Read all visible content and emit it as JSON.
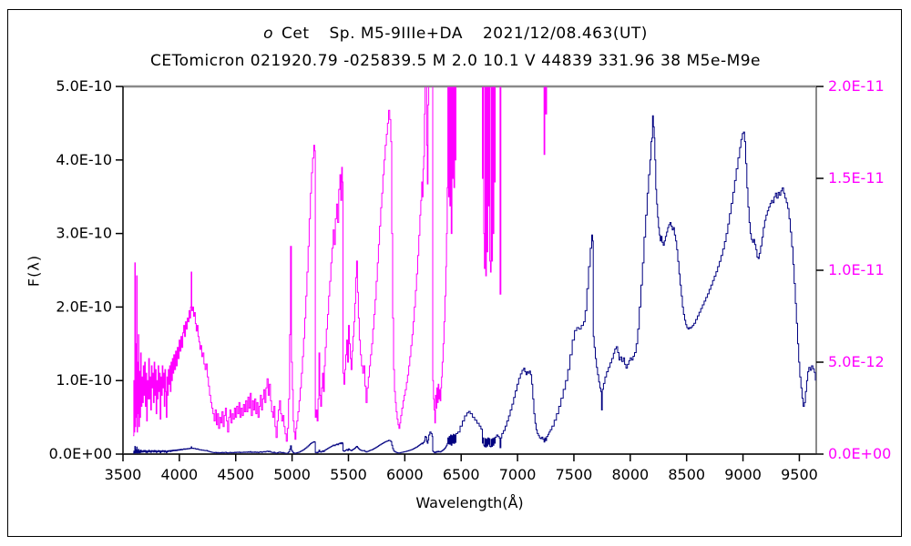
{
  "title": {
    "star_letter": "o",
    "star_name": "Cet",
    "spectral": "Sp. M5-9IIIe+DA",
    "date": "2021/12/08.463(UT)",
    "line2": "CETomicron 021920.79 -025839.5 M 2.0 10.1 V 44839 331.96 38 M5e-M9e"
  },
  "colors": {
    "navy": "#000080",
    "magenta": "#FF00FF",
    "frame_gray": "#8a8a8a",
    "axis_black": "#000000",
    "bottom_axis": "#333333"
  },
  "chart_data": {
    "type": "line",
    "title": "o Cet Sp. M5-9IIIe+DA 2021/12/08.463(UT)",
    "subtitle": "CETomicron 021920.79 -025839.5 M 2.0 10.1 V 44839 331.96 38 M5e-M9e",
    "xlabel": "Wavelength(Å)",
    "ylabel": "F(λ)",
    "x_range": [
      3500,
      9650
    ],
    "x_ticks": [
      3500,
      4000,
      4500,
      5000,
      5500,
      6000,
      6500,
      7000,
      7500,
      8000,
      8500,
      9000,
      9500
    ],
    "left_axis": {
      "range_label": [
        "0.0E+00",
        "5.0E-10"
      ],
      "ticks": [
        {
          "label": "5.0E-10",
          "value_1e12": 500
        },
        {
          "label": "4.0E-10",
          "value_1e12": 400
        },
        {
          "label": "3.0E-10",
          "value_1e12": 300
        },
        {
          "label": "2.0E-10",
          "value_1e12": 200
        },
        {
          "label": "1.0E-10",
          "value_1e12": 100
        },
        {
          "label": "0.0E+00",
          "value_1e12": 0
        }
      ]
    },
    "right_axis": {
      "range_label": [
        "0.0E+00",
        "2.0E-11"
      ],
      "ticks": [
        {
          "label": "2.0E-11",
          "value_1e12": 20
        },
        {
          "label": "1.5E-11",
          "value_1e12": 15
        },
        {
          "label": "1.0E-11",
          "value_1e12": 10
        },
        {
          "label": "5.0E-12",
          "value_1e12": 5
        },
        {
          "label": "0.0E+00",
          "value_1e12": 0
        }
      ]
    },
    "series": [
      {
        "name": "spectrum-left-scale",
        "color": "#000080",
        "axis": "left",
        "max_1e12": 500
      },
      {
        "name": "spectrum-right-scale",
        "color": "#FF00FF",
        "axis": "right",
        "max_1e12": 20,
        "clipped_above": 20
      }
    ],
    "legend": "none",
    "grid": false,
    "spectrum_flux_1e12": [
      3590,
      1.0,
      3596,
      4.0,
      3601,
      1.2,
      3605,
      10.4,
      3609,
      1.5,
      3613,
      6.0,
      3617,
      2.0,
      3621,
      9.7,
      3625,
      1.2,
      3629,
      5.0,
      3633,
      2.2,
      3637,
      6.5,
      3641,
      1.5,
      3646,
      4.5,
      3651,
      2.0,
      3656,
      5.5,
      3662,
      2.6,
      3668,
      4.2,
      3674,
      2.8,
      3680,
      4.8,
      3686,
      3.2,
      3692,
      5.0,
      3698,
      2.6,
      3704,
      4.4,
      3710,
      1.8,
      3716,
      4.0,
      3722,
      3.0,
      3728,
      5.2,
      3734,
      3.0,
      3740,
      4.2,
      3746,
      2.4,
      3752,
      4.8,
      3758,
      3.6,
      3764,
      4.4,
      3770,
      2.8,
      3776,
      5.0,
      3782,
      3.2,
      3788,
      4.6,
      3794,
      2.2,
      3800,
      4.0,
      3806,
      3.0,
      3812,
      4.8,
      3818,
      3.4,
      3824,
      4.4,
      3830,
      1.9,
      3836,
      4.2,
      3842,
      3.2,
      3848,
      4.8,
      3854,
      3.6,
      3860,
      4.4,
      3866,
      2.6,
      3872,
      4.6,
      3878,
      3.4,
      3884,
      2.0,
      3890,
      4.2,
      3896,
      3.2,
      3902,
      4.6,
      3908,
      3.8,
      3914,
      4.8,
      3920,
      3.4,
      3926,
      5.0,
      3932,
      4.0,
      3938,
      5.2,
      3944,
      4.4,
      3950,
      5.4,
      3958,
      4.6,
      3966,
      5.6,
      3974,
      4.8,
      3982,
      5.8,
      3990,
      5.2,
      3998,
      6.2,
      4006,
      5.6,
      4014,
      6.4,
      4022,
      5.8,
      4030,
      6.6,
      4038,
      7.0,
      4046,
      6.4,
      4054,
      7.2,
      4062,
      6.8,
      4070,
      7.4,
      4078,
      7.2,
      4086,
      7.8,
      4094,
      7.4,
      4100,
      8.0,
      4105,
      9.9,
      4110,
      7.8,
      4118,
      8.0,
      4126,
      7.5,
      4134,
      7.7,
      4142,
      7.1,
      4150,
      6.7,
      4158,
      7.0,
      4166,
      6.4,
      4174,
      6.1,
      4182,
      5.7,
      4190,
      5.9,
      4198,
      5.3,
      4208,
      5.5,
      4218,
      4.9,
      4228,
      4.6,
      4238,
      4.9,
      4248,
      4.2,
      4258,
      3.7,
      4268,
      3.2,
      4278,
      2.8,
      4288,
      2.5,
      4298,
      2.2,
      4308,
      1.8,
      4318,
      2.4,
      4328,
      1.6,
      4338,
      2.2,
      4348,
      1.4,
      4358,
      2.0,
      4368,
      1.7,
      4378,
      2.3,
      4388,
      1.5,
      4398,
      2.1,
      4408,
      2.5,
      4418,
      1.8,
      4428,
      1.2,
      4438,
      2.0,
      4448,
      2.4,
      4458,
      1.7,
      4468,
      2.2,
      4478,
      1.9,
      4488,
      2.5,
      4498,
      2.0,
      4508,
      2.6,
      4518,
      2.2,
      4528,
      2.8,
      4538,
      2.0,
      4548,
      2.5,
      4558,
      2.1,
      4568,
      2.7,
      4578,
      2.3,
      4588,
      2.9,
      4598,
      2.3,
      4608,
      3.1,
      4618,
      2.5,
      4628,
      3.3,
      4638,
      2.1,
      4648,
      2.9,
      4658,
      2.4,
      4668,
      3.0,
      4678,
      2.2,
      4688,
      2.8,
      4698,
      2.0,
      4708,
      2.6,
      4718,
      3.2,
      4728,
      2.4,
      4738,
      3.0,
      4748,
      3.5,
      4758,
      2.8,
      4768,
      3.6,
      4778,
      4.1,
      4788,
      3.2,
      4798,
      3.8,
      4808,
      2.9,
      4818,
      2.3,
      4828,
      2.0,
      4838,
      2.6,
      4848,
      1.5,
      4858,
      0.9,
      4868,
      1.8,
      4878,
      2.4,
      4888,
      2.9,
      4898,
      2.2,
      4908,
      1.8,
      4918,
      2.1,
      4928,
      1.5,
      4938,
      1.1,
      4948,
      0.7,
      4958,
      1.4,
      4968,
      3.0,
      4978,
      6.5,
      4986,
      11.3,
      4994,
      5.0,
      5002,
      3.5,
      5010,
      1.8,
      5018,
      1.2,
      5026,
      0.8,
      5034,
      1.4,
      5042,
      1.8,
      5052,
      2.3,
      5062,
      2.9,
      5072,
      3.6,
      5082,
      4.4,
      5092,
      5.3,
      5102,
      6.3,
      5112,
      7.4,
      5122,
      8.6,
      5132,
      9.9,
      5142,
      11.3,
      5152,
      12.8,
      5162,
      14.2,
      5172,
      15.3,
      5182,
      16.1,
      5192,
      16.8,
      5200,
      16.5,
      5206,
      2.0,
      5214,
      2.4,
      5222,
      1.8,
      5230,
      3.0,
      5238,
      5.5,
      5246,
      3.2,
      5254,
      2.6,
      5262,
      3.6,
      5270,
      4.4,
      5278,
      3.4,
      5286,
      4.8,
      5294,
      5.8,
      5304,
      6.8,
      5314,
      7.6,
      5324,
      8.6,
      5334,
      9.4,
      5344,
      10.4,
      5354,
      11.2,
      5364,
      12.2,
      5374,
      11.4,
      5384,
      12.8,
      5394,
      13.6,
      5404,
      12.6,
      5414,
      14.4,
      5424,
      15.2,
      5432,
      13.8,
      5440,
      15.6,
      5446,
      14.8,
      5452,
      4.4,
      5460,
      3.8,
      5468,
      4.6,
      5476,
      5.4,
      5484,
      6.2,
      5492,
      5.0,
      5500,
      7.0,
      5508,
      6.0,
      5516,
      5.2,
      5524,
      4.6,
      5532,
      5.6,
      5540,
      6.4,
      5548,
      7.2,
      5556,
      8.2,
      5564,
      9.6,
      5572,
      10.5,
      5580,
      8.8,
      5588,
      7.4,
      5596,
      6.2,
      5606,
      5.4,
      5616,
      4.8,
      5626,
      4.4,
      5636,
      4.8,
      5646,
      3.7,
      5656,
      2.8,
      5666,
      3.6,
      5676,
      4.2,
      5686,
      4.8,
      5696,
      5.4,
      5706,
      6.0,
      5716,
      6.8,
      5726,
      7.6,
      5736,
      8.4,
      5746,
      9.4,
      5756,
      10.4,
      5766,
      11.4,
      5776,
      12.4,
      5786,
      13.4,
      5796,
      14.2,
      5806,
      15.2,
      5816,
      16.0,
      5826,
      16.8,
      5836,
      17.4,
      5846,
      18.0,
      5856,
      18.7,
      5866,
      18.2,
      5876,
      17.0,
      5884,
      12.0,
      5892,
      7.4,
      5900,
      4.6,
      5908,
      3.4,
      5916,
      2.8,
      5924,
      2.3,
      5932,
      1.9,
      5940,
      1.6,
      5948,
      1.4,
      5956,
      1.7,
      5964,
      2.1,
      5974,
      2.5,
      5984,
      2.9,
      5994,
      3.2,
      6004,
      3.5,
      6014,
      3.9,
      6024,
      4.3,
      6034,
      4.8,
      6044,
      5.3,
      6054,
      5.9,
      6064,
      6.5,
      6074,
      7.2,
      6084,
      8.0,
      6094,
      8.9,
      6104,
      9.8,
      6114,
      10.8,
      6124,
      11.9,
      6134,
      13.0,
      6142,
      13.8,
      6150,
      14.8,
      6156,
      14.0,
      6162,
      15.5,
      6168,
      16.2,
      6174,
      18.5,
      6180,
      24,
      6188,
      23,
      6194,
      16.8,
      6200,
      14.7,
      6206,
      19,
      6212,
      26,
      6222,
      30,
      6232,
      28,
      6242,
      24,
      6248,
      4.0,
      6254,
      3.0,
      6260,
      2.4,
      6266,
      1.7,
      6272,
      3.2,
      6278,
      2.5,
      6284,
      3.6,
      6290,
      2.8,
      6296,
      3.8,
      6302,
      3.0,
      6308,
      3.5,
      6314,
      2.9,
      6320,
      3.6,
      6326,
      4.2,
      6332,
      5.0,
      6340,
      6.0,
      6348,
      7.2,
      6356,
      8.6,
      6364,
      10.2,
      6370,
      12.0,
      6376,
      14.5,
      6382,
      22,
      6388,
      14.0,
      6394,
      24,
      6400,
      13.5,
      6406,
      26,
      6412,
      12.0,
      6418,
      25,
      6424,
      15.0,
      6430,
      27,
      6436,
      14.5,
      6442,
      26,
      6448,
      16.0,
      6454,
      28,
      6470,
      30,
      6490,
      38,
      6510,
      45,
      6530,
      52,
      6550,
      56,
      6565,
      58,
      6580,
      55,
      6600,
      50,
      6620,
      46,
      6640,
      42,
      6660,
      38,
      6675,
      34,
      6688,
      15,
      6694,
      22,
      6700,
      12,
      6706,
      10.1,
      6712,
      21,
      6718,
      9.7,
      6724,
      20,
      6730,
      11,
      6736,
      22,
      6742,
      13.5,
      6748,
      21,
      6754,
      10.5,
      6760,
      9.9,
      6766,
      20,
      6772,
      10.5,
      6778,
      21,
      6784,
      12,
      6790,
      22,
      6796,
      14.8,
      6802,
      23,
      6814,
      26,
      6826,
      24,
      6838,
      22,
      6845,
      8.7,
      6852,
      22,
      6860,
      28,
      6875,
      32,
      6890,
      38,
      6905,
      45,
      6920,
      52,
      6935,
      60,
      6950,
      68,
      6965,
      77,
      6980,
      86,
      6995,
      95,
      7010,
      103,
      7025,
      109,
      7040,
      114,
      7055,
      117,
      7065,
      112,
      7075,
      108,
      7085,
      112,
      7095,
      110,
      7105,
      113,
      7115,
      108,
      7125,
      95,
      7135,
      75,
      7145,
      55,
      7155,
      42,
      7165,
      33,
      7175,
      28,
      7185,
      25,
      7195,
      22,
      7205,
      21,
      7215,
      23,
      7225,
      20,
      7235,
      16.3,
      7242,
      22,
      7250,
      18.5,
      7258,
      24,
      7270,
      27,
      7280,
      30,
      7290,
      33,
      7305,
      38,
      7325,
      46,
      7345,
      55,
      7365,
      65,
      7385,
      76,
      7405,
      88,
      7425,
      100,
      7445,
      115,
      7465,
      135,
      7485,
      155,
      7505,
      168,
      7525,
      172,
      7545,
      170,
      7565,
      175,
      7585,
      180,
      7600,
      195,
      7615,
      225,
      7630,
      255,
      7645,
      280,
      7658,
      298,
      7666,
      290,
      7672,
      160,
      7680,
      145,
      7690,
      130,
      7700,
      118,
      7710,
      108,
      7720,
      98,
      7730,
      90,
      7738,
      85,
      7745,
      60,
      7752,
      88,
      7762,
      96,
      7775,
      105,
      7790,
      112,
      7805,
      118,
      7820,
      124,
      7835,
      130,
      7850,
      137,
      7862,
      143,
      7875,
      146,
      7888,
      138,
      7900,
      128,
      7912,
      132,
      7925,
      126,
      7938,
      131,
      7950,
      122,
      7962,
      117,
      7975,
      122,
      7988,
      127,
      8000,
      131,
      8012,
      128,
      8025,
      133,
      8038,
      138,
      8052,
      150,
      8066,
      170,
      8080,
      200,
      8094,
      230,
      8108,
      260,
      8122,
      295,
      8136,
      325,
      8150,
      355,
      8162,
      380,
      8174,
      400,
      8184,
      425,
      8192,
      430,
      8198,
      460,
      8205,
      445,
      8212,
      430,
      8218,
      400,
      8226,
      360,
      8234,
      340,
      8242,
      322,
      8250,
      308,
      8258,
      298,
      8266,
      290,
      8274,
      296,
      8282,
      288,
      8292,
      284,
      8302,
      290,
      8312,
      296,
      8322,
      302,
      8332,
      308,
      8342,
      312,
      8352,
      315,
      8362,
      310,
      8372,
      305,
      8382,
      308,
      8392,
      298,
      8402,
      290,
      8412,
      278,
      8422,
      262,
      8432,
      245,
      8442,
      230,
      8452,
      215,
      8462,
      200,
      8472,
      190,
      8482,
      182,
      8492,
      176,
      8502,
      172,
      8512,
      170,
      8522,
      172,
      8532,
      171,
      8542,
      173,
      8552,
      175,
      8565,
      178,
      8580,
      183,
      8595,
      188,
      8610,
      193,
      8625,
      198,
      8640,
      203,
      8655,
      208,
      8670,
      213,
      8685,
      218,
      8700,
      224,
      8715,
      230,
      8730,
      236,
      8745,
      242,
      8760,
      248,
      8775,
      255,
      8790,
      262,
      8805,
      270,
      8820,
      279,
      8835,
      289,
      8850,
      300,
      8865,
      313,
      8880,
      327,
      8895,
      341,
      8910,
      356,
      8925,
      372,
      8940,
      388,
      8955,
      403,
      8970,
      417,
      8982,
      428,
      8994,
      436,
      9004,
      438,
      9014,
      425,
      9024,
      395,
      9034,
      362,
      9044,
      336,
      9054,
      315,
      9064,
      300,
      9074,
      292,
      9084,
      288,
      9094,
      292,
      9104,
      285,
      9114,
      278,
      9124,
      268,
      9134,
      266,
      9144,
      273,
      9156,
      283,
      9168,
      295,
      9180,
      308,
      9192,
      318,
      9204,
      325,
      9216,
      331,
      9228,
      336,
      9240,
      341,
      9252,
      345,
      9264,
      342,
      9276,
      350,
      9288,
      355,
      9300,
      348,
      9312,
      356,
      9324,
      352,
      9336,
      358,
      9348,
      362,
      9360,
      355,
      9372,
      348,
      9384,
      342,
      9396,
      334,
      9408,
      320,
      9420,
      302,
      9432,
      282,
      9444,
      258,
      9454,
      232,
      9464,
      205,
      9474,
      178,
      9484,
      150,
      9494,
      125,
      9504,
      105,
      9514,
      90,
      9524,
      76,
      9534,
      65,
      9544,
      70,
      9554,
      85,
      9564,
      100,
      9574,
      112,
      9584,
      118,
      9596,
      114,
      9608,
      120,
      9620,
      116,
      9632,
      111,
      9642,
      100
    ]
  }
}
